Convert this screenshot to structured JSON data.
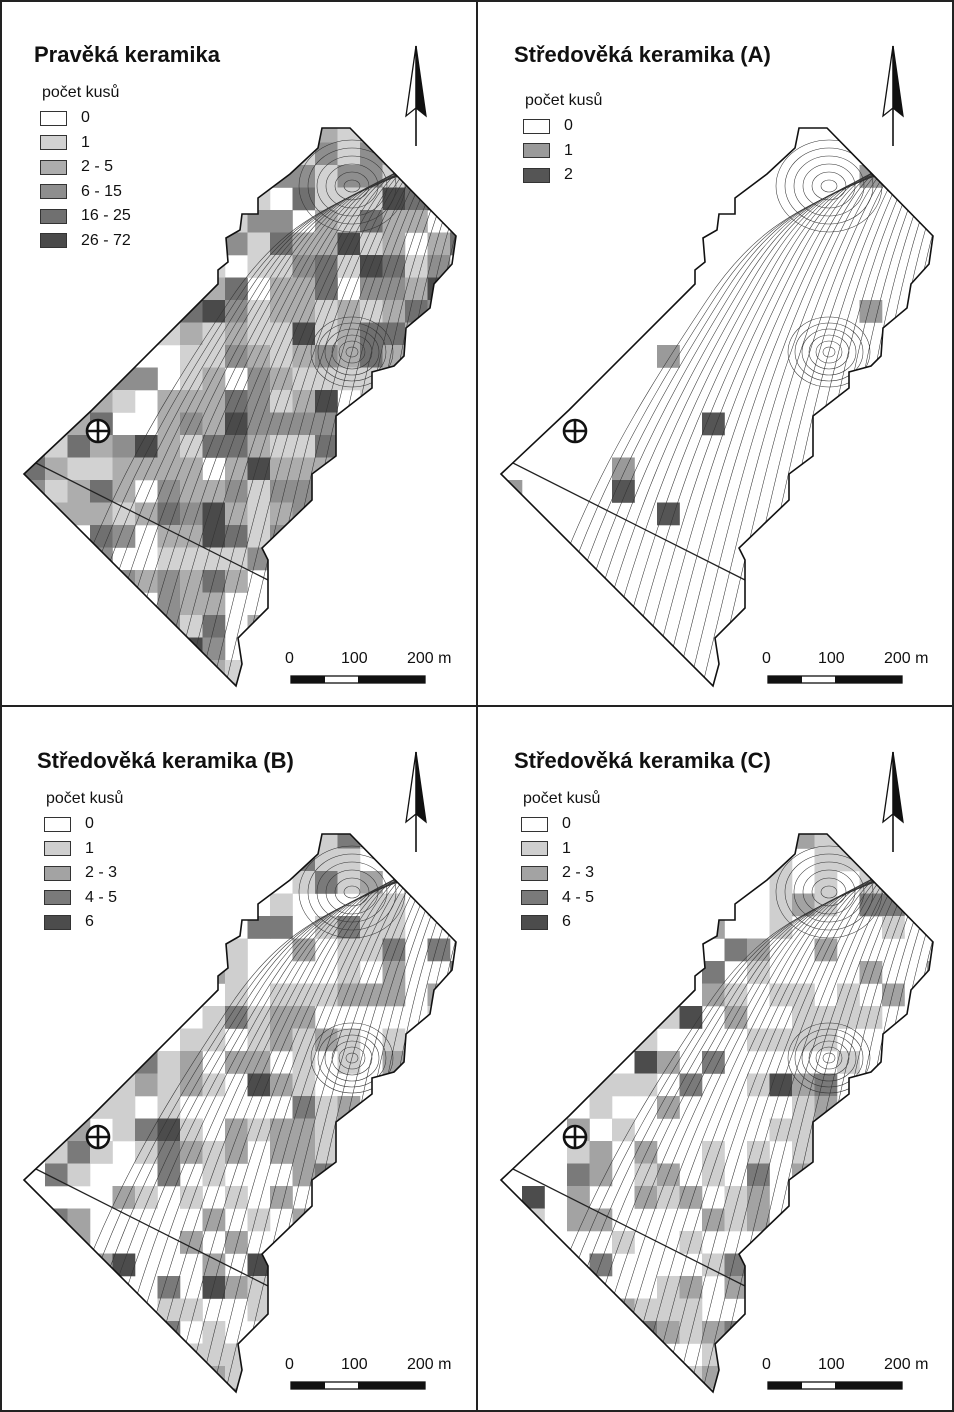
{
  "figure": {
    "panels": [
      {
        "id": "pravek",
        "title": "Pravěká keramika",
        "legend_title": "počet kusů",
        "legend": [
          {
            "label": "0",
            "color": "#ffffff"
          },
          {
            "label": "1",
            "color": "#d2d2d2"
          },
          {
            "label": "2 - 5",
            "color": "#adadad"
          },
          {
            "label": "6 - 15",
            "color": "#8e8e8e"
          },
          {
            "label": "16 - 25",
            "color": "#707070"
          },
          {
            "label": "26 - 72",
            "color": "#4a4a4a"
          }
        ],
        "coverage": [
          0.18,
          0.22,
          0.26,
          0.2,
          0.09,
          0.05
        ],
        "seed": 11,
        "scale": {
          "labels": [
            "0",
            "100",
            "200 m"
          ]
        }
      },
      {
        "id": "stredovek-a",
        "title": "Středověká keramika (A)",
        "legend_title": "počet kusů",
        "legend": [
          {
            "label": "0",
            "color": "#ffffff"
          },
          {
            "label": "1",
            "color": "#9a9a9a"
          },
          {
            "label": "2",
            "color": "#555555"
          }
        ],
        "coverage": [
          0.95,
          0.035,
          0.015
        ],
        "seed": 23,
        "scale": {
          "labels": [
            "0",
            "100",
            "200 m"
          ]
        }
      },
      {
        "id": "stredovek-b",
        "title": "Středověká keramika (B)",
        "legend_title": "počet kusů",
        "legend": [
          {
            "label": "0",
            "color": "#ffffff"
          },
          {
            "label": "1",
            "color": "#cfcfcf"
          },
          {
            "label": "2 - 3",
            "color": "#a3a3a3"
          },
          {
            "label": "4 - 5",
            "color": "#7a7a7a"
          },
          {
            "label": "6",
            "color": "#4c4c4c"
          }
        ],
        "coverage": [
          0.45,
          0.3,
          0.16,
          0.07,
          0.02
        ],
        "seed": 37,
        "scale": {
          "labels": [
            "0",
            "100",
            "200 m"
          ]
        }
      },
      {
        "id": "stredovek-c",
        "title": "Středověká keramika (C)",
        "legend_title": "počet kusů",
        "legend": [
          {
            "label": "0",
            "color": "#ffffff"
          },
          {
            "label": "1",
            "color": "#cfcfcf"
          },
          {
            "label": "2 - 3",
            "color": "#a3a3a3"
          },
          {
            "label": "4 - 5",
            "color": "#7a7a7a"
          },
          {
            "label": "6",
            "color": "#4c4c4c"
          }
        ],
        "coverage": [
          0.55,
          0.22,
          0.13,
          0.08,
          0.02
        ],
        "seed": 53,
        "scale": {
          "labels": [
            "0",
            "100",
            "200 m"
          ]
        }
      }
    ],
    "icons": {
      "north": "north-arrow-icon",
      "site": "crosshair-circle-icon"
    }
  }
}
